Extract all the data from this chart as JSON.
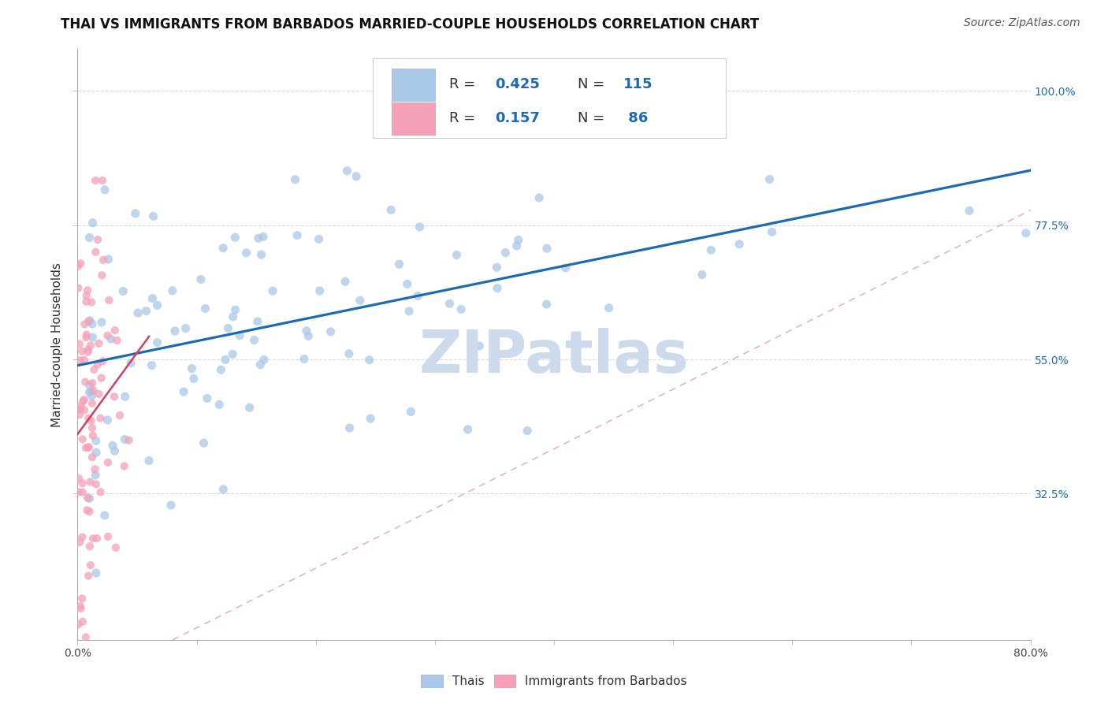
{
  "title": "THAI VS IMMIGRANTS FROM BARBADOS MARRIED-COUPLE HOUSEHOLDS CORRELATION CHART",
  "source": "Source: ZipAtlas.com",
  "ylabel": "Married-couple Households",
  "ytick_labels": [
    "100.0%",
    "77.5%",
    "55.0%",
    "32.5%"
  ],
  "ytick_values": [
    1.0,
    0.775,
    0.55,
    0.325
  ],
  "r_thai": 0.425,
  "n_thai": 115,
  "r_barbados": 0.157,
  "n_barbados": 86,
  "thai_color": "#aac8e8",
  "barbados_color": "#f4a0b8",
  "trend_thai_color": "#1a6bb5",
  "trend_barbados_color": "#d04060",
  "diagonal_color": "#e0b0b8",
  "watermark_color": "#ccdaeb",
  "title_fontsize": 12,
  "source_fontsize": 10,
  "axis_label_fontsize": 11,
  "tick_fontsize": 10,
  "xmin": 0.0,
  "xmax": 0.8,
  "ymin": 0.08,
  "ymax": 1.07,
  "background_color": "#ffffff",
  "grid_color": "#d8d8d8",
  "legend_R_color": "#1a6bb5",
  "legend_N_color": "#1a6bb5"
}
